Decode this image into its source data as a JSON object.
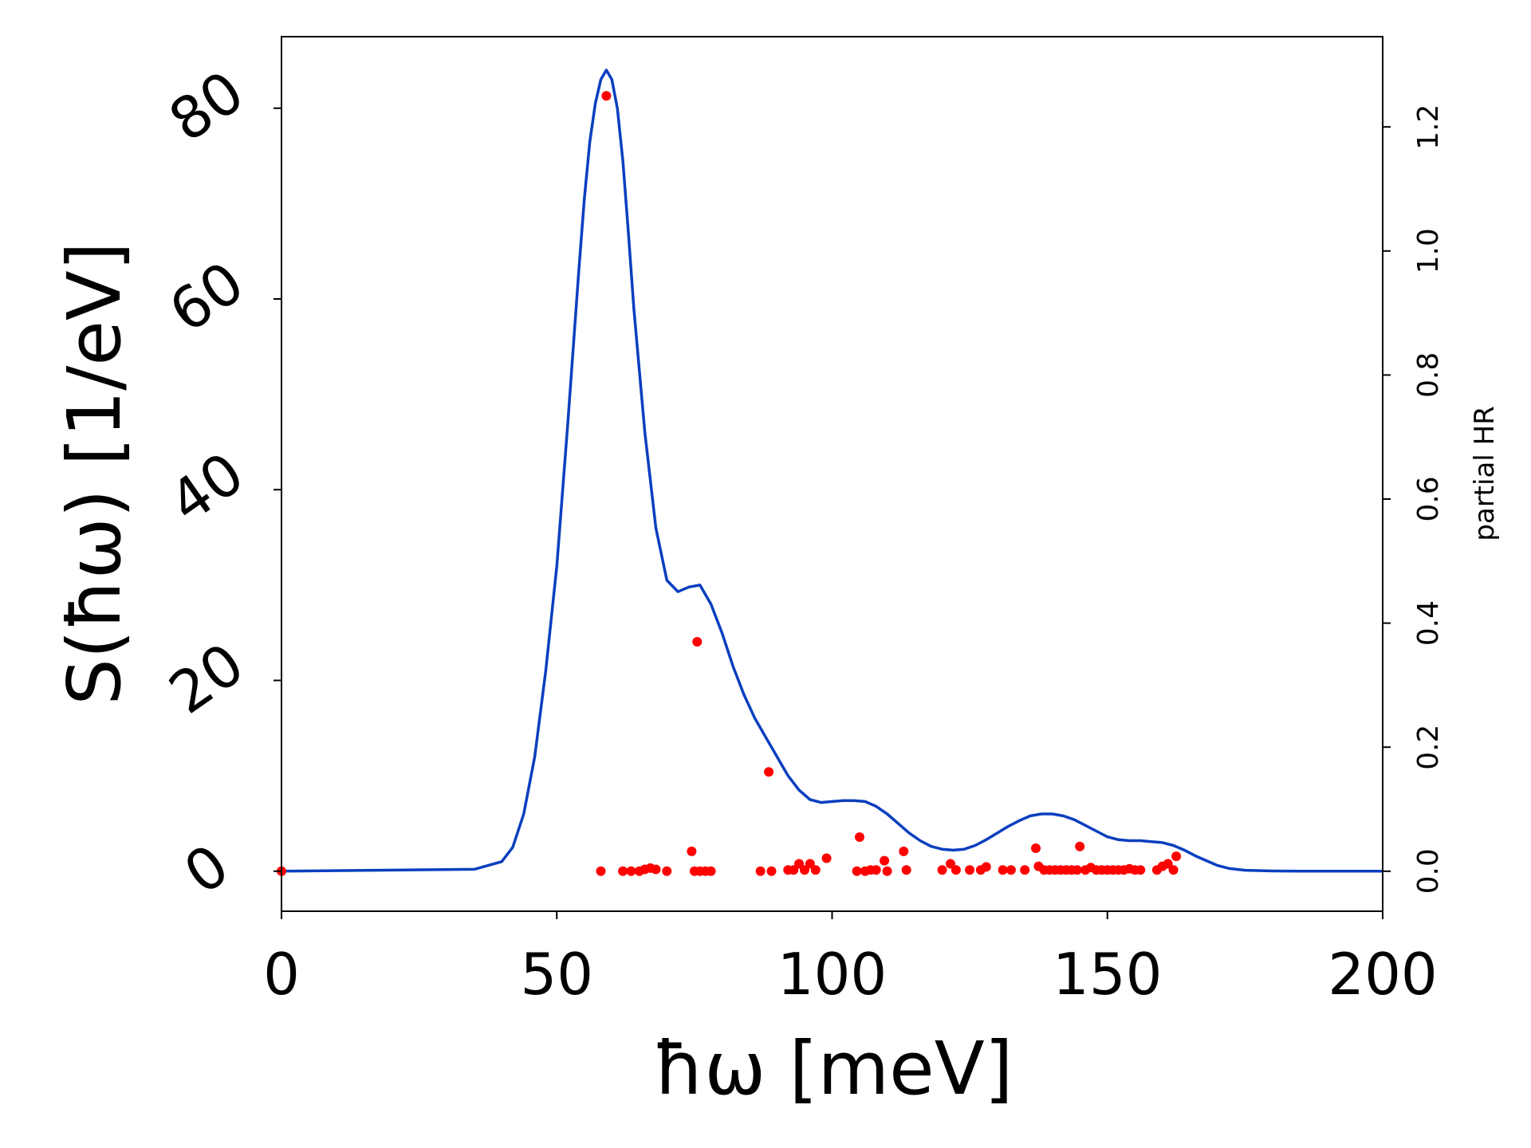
{
  "chart_data": {
    "type": "line",
    "title": "",
    "xlabel": "ħω [meV]",
    "ylabel": "S(ħω) [1/eV]",
    "y2label": "partial HR",
    "xlim": [
      0,
      200
    ],
    "ylim": [
      -4.2,
      87.5
    ],
    "y2lim": [
      -0.0645,
      1.3455
    ],
    "x_ticks": [
      "0",
      "50",
      "100",
      "150",
      "200"
    ],
    "y_ticks": [
      "0",
      "20",
      "40",
      "60",
      "80"
    ],
    "y2_ticks": [
      "0.0",
      "0.2",
      "0.4",
      "0.6",
      "0.8",
      "1.0",
      "1.2"
    ],
    "grid": false,
    "colors": {
      "line": "#0a3fbf",
      "points": "#ff0000"
    },
    "series": [
      {
        "kind": "line",
        "axis": "left",
        "x": [
          0,
          35,
          40,
          42,
          44,
          46,
          48,
          50,
          52,
          54,
          55,
          56,
          57,
          58,
          59,
          60,
          61,
          62,
          63,
          64,
          66,
          68,
          70,
          72,
          74,
          76,
          78,
          80,
          82,
          84,
          86,
          88,
          90,
          92,
          94,
          96,
          98,
          100,
          102,
          104,
          106,
          108,
          110,
          112,
          114,
          116,
          118,
          120,
          122,
          124,
          126,
          128,
          130,
          132,
          134,
          136,
          138,
          140,
          142,
          144,
          146,
          148,
          150,
          152,
          154,
          156,
          158,
          160,
          162,
          164,
          166,
          168,
          170,
          172,
          175,
          180,
          185,
          190,
          200
        ],
        "y": [
          0,
          0.2,
          1.0,
          2.5,
          6.0,
          12.0,
          21.0,
          32.0,
          47.0,
          63.0,
          70.5,
          76.5,
          80.5,
          83.0,
          84.0,
          83.0,
          80.0,
          74.5,
          67.0,
          59.0,
          46.0,
          36.0,
          30.5,
          29.3,
          29.8,
          30.0,
          28.0,
          25.0,
          21.5,
          18.5,
          16.0,
          14.0,
          12.0,
          10.0,
          8.5,
          7.5,
          7.2,
          7.3,
          7.4,
          7.4,
          7.3,
          6.8,
          6.0,
          5.0,
          4.0,
          3.2,
          2.6,
          2.3,
          2.2,
          2.3,
          2.7,
          3.3,
          4.0,
          4.7,
          5.3,
          5.8,
          6.0,
          6.0,
          5.8,
          5.4,
          4.8,
          4.2,
          3.6,
          3.3,
          3.2,
          3.2,
          3.1,
          3.0,
          2.7,
          2.2,
          1.6,
          1.1,
          0.6,
          0.3,
          0.1,
          0.02,
          0,
          0,
          0
        ]
      },
      {
        "kind": "scatter",
        "axis": "right",
        "x": [
          0,
          58.0,
          59.0,
          62.0,
          63.5,
          65.0,
          66.0,
          67.0,
          68.0,
          70.0,
          74.5,
          75.0,
          75.5,
          76.0,
          77.0,
          78.0,
          87.0,
          88.5,
          89.0,
          92.0,
          93.0,
          94.0,
          95.0,
          96.0,
          97.0,
          99.0,
          104.5,
          105.0,
          106.0,
          107.0,
          108.0,
          109.5,
          110.0,
          113.0,
          113.5,
          120.0,
          121.5,
          122.5,
          125.0,
          127.0,
          128.0,
          131.0,
          132.5,
          135.0,
          137.0,
          137.5,
          138.5,
          139.5,
          140.5,
          141.5,
          142.5,
          143.5,
          144.5,
          145.0,
          146.0,
          147.0,
          148.0,
          149.0,
          150.0,
          151.0,
          152.0,
          153.0,
          154.0,
          155.0,
          156.0,
          159.0,
          160.0,
          161.0,
          162.0,
          162.5
        ],
        "y": [
          0,
          0,
          1.25,
          0,
          0,
          0,
          0.003,
          0.005,
          0.003,
          0,
          0.032,
          0,
          0.37,
          0,
          0,
          0,
          0,
          0.16,
          0,
          0.002,
          0.002,
          0.012,
          0.002,
          0.012,
          0.002,
          0.021,
          0,
          0.055,
          0,
          0.002,
          0.002,
          0.017,
          0,
          0.032,
          0.002,
          0.002,
          0.012,
          0.002,
          0.002,
          0.002,
          0.007,
          0.002,
          0.002,
          0.002,
          0.037,
          0.008,
          0.002,
          0.002,
          0.002,
          0.002,
          0.002,
          0.002,
          0.002,
          0.04,
          0.002,
          0.006,
          0.002,
          0.002,
          0.002,
          0.002,
          0.002,
          0.002,
          0.004,
          0.002,
          0.002,
          0.002,
          0.008,
          0.012,
          0.002,
          0.024
        ]
      }
    ]
  }
}
